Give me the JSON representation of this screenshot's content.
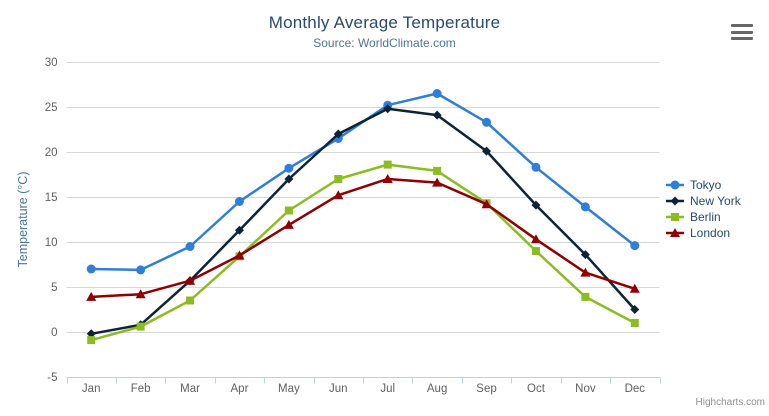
{
  "chart": {
    "title": "Monthly Average Temperature",
    "subtitle": "Source: WorldClimate.com",
    "credits": "Highcharts.com",
    "context_menu_icon": "hamburger-icon"
  },
  "chart_data": {
    "type": "line",
    "title": "Monthly Average Temperature",
    "subtitle": "Source: WorldClimate.com",
    "categories": [
      "Jan",
      "Feb",
      "Mar",
      "Apr",
      "May",
      "Jun",
      "Jul",
      "Aug",
      "Sep",
      "Oct",
      "Nov",
      "Dec"
    ],
    "series": [
      {
        "name": "Tokyo",
        "color": "#2f7ed8",
        "marker": "circle",
        "values": [
          7.0,
          6.9,
          9.5,
          14.5,
          18.2,
          21.5,
          25.2,
          26.5,
          23.3,
          18.3,
          13.9,
          9.6
        ]
      },
      {
        "name": "New York",
        "color": "#0d233a",
        "marker": "diamond",
        "values": [
          -0.2,
          0.8,
          5.7,
          11.3,
          17.0,
          22.0,
          24.8,
          24.1,
          20.1,
          14.1,
          8.6,
          2.5
        ]
      },
      {
        "name": "Berlin",
        "color": "#8bbc21",
        "marker": "square",
        "values": [
          -0.9,
          0.6,
          3.5,
          8.4,
          13.5,
          17.0,
          18.6,
          17.9,
          14.3,
          9.0,
          3.9,
          1.0
        ]
      },
      {
        "name": "London",
        "color": "#910000",
        "marker": "triangle",
        "values": [
          3.9,
          4.2,
          5.7,
          8.5,
          11.9,
          15.2,
          17.0,
          16.6,
          14.2,
          10.3,
          6.6,
          4.8
        ]
      }
    ],
    "xlabel": "",
    "ylabel": "Temperature (°C)",
    "ylim": [
      -5,
      30
    ],
    "ytick_step": 5,
    "yticks": [
      "-5",
      "0",
      "5",
      "10",
      "15",
      "20",
      "25",
      "30"
    ],
    "grid": true,
    "legend_position": "right",
    "credits": "Highcharts.com"
  }
}
